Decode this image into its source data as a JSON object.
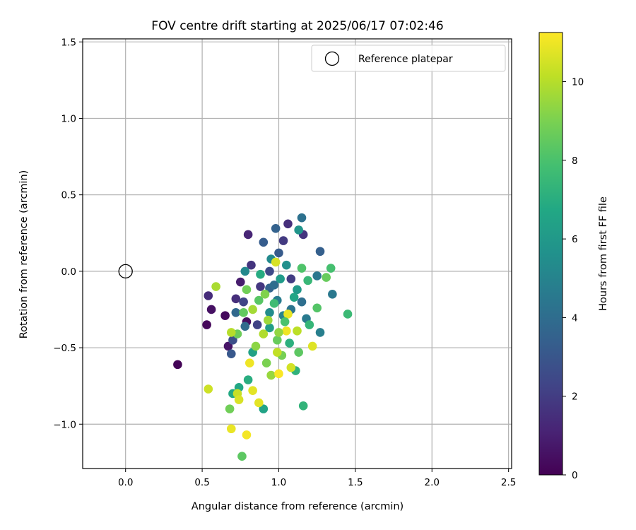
{
  "chart_data": {
    "type": "scatter",
    "title": "FOV centre drift starting at 2025/06/17 07:02:46",
    "xlabel": "Angular distance from reference (arcmin)",
    "ylabel": "Rotation from reference (arcmin)",
    "xlim": [
      -0.28,
      2.52
    ],
    "ylim": [
      -1.29,
      1.52
    ],
    "xticks": [
      0.0,
      0.5,
      1.0,
      1.5,
      2.0,
      2.5
    ],
    "xtick_labels": [
      "0.0",
      "0.5",
      "1.0",
      "1.5",
      "2.0",
      "2.5"
    ],
    "yticks": [
      -1.0,
      -0.5,
      0.0,
      0.5,
      1.0,
      1.5
    ],
    "ytick_labels": [
      "−1.0",
      "−0.5",
      "0.0",
      "0.5",
      "1.0",
      "1.5"
    ],
    "grid": true,
    "colormap": "viridis",
    "colorbar": {
      "label": "Hours from first FF file",
      "min": 0,
      "max": 11.25,
      "ticks": [
        0,
        2,
        4,
        6,
        8,
        10
      ],
      "tick_labels": [
        "0",
        "2",
        "4",
        "6",
        "8",
        "10"
      ]
    },
    "legend": {
      "position": "top-right",
      "entries": [
        {
          "label": "Reference platepar",
          "marker": "open-circle",
          "color": "#000000"
        }
      ]
    },
    "reference_point": {
      "x": 0.0,
      "y": 0.0
    },
    "series": [
      {
        "points": [
          [
            0.34,
            -0.61,
            0.1
          ],
          [
            0.53,
            -0.35,
            0.2
          ],
          [
            0.65,
            -0.29,
            0.3
          ],
          [
            0.56,
            -0.25,
            0.5
          ],
          [
            0.67,
            -0.49,
            0.6
          ],
          [
            0.79,
            -0.33,
            0.4
          ],
          [
            0.8,
            0.24,
            1.2
          ],
          [
            0.54,
            -0.16,
            1.4
          ],
          [
            0.72,
            -0.18,
            1.5
          ],
          [
            0.75,
            -0.07,
            0.9
          ],
          [
            0.82,
            0.04,
            1.7
          ],
          [
            0.88,
            -0.1,
            1.8
          ],
          [
            1.06,
            0.31,
            1.5
          ],
          [
            1.16,
            0.24,
            1.7
          ],
          [
            1.03,
            0.2,
            1.9
          ],
          [
            1.08,
            -0.05,
            2.0
          ],
          [
            0.77,
            -0.2,
            2.3
          ],
          [
            0.94,
            0.0,
            2.5
          ],
          [
            0.86,
            -0.35,
            2.2
          ],
          [
            0.7,
            -0.45,
            2.7
          ],
          [
            0.69,
            -0.54,
            3.1
          ],
          [
            0.9,
            0.19,
            3.3
          ],
          [
            0.98,
            0.28,
            3.5
          ],
          [
            1.0,
            0.12,
            3.2
          ],
          [
            1.27,
            0.13,
            3.4
          ],
          [
            1.15,
            0.35,
            4.2
          ],
          [
            0.72,
            -0.27,
            3.8
          ],
          [
            0.78,
            -0.36,
            3.9
          ],
          [
            0.94,
            -0.11,
            3.6
          ],
          [
            0.97,
            -0.09,
            4.0
          ],
          [
            1.08,
            -0.25,
            4.3
          ],
          [
            1.15,
            -0.2,
            4.1
          ],
          [
            1.25,
            -0.03,
            4.4
          ],
          [
            1.35,
            -0.15,
            4.5
          ],
          [
            1.18,
            -0.31,
            4.6
          ],
          [
            1.27,
            -0.4,
            4.8
          ],
          [
            0.99,
            -0.19,
            4.7
          ],
          [
            1.03,
            -0.29,
            5.0
          ],
          [
            0.78,
            0.0,
            5.2
          ],
          [
            0.95,
            0.08,
            5.3
          ],
          [
            1.05,
            0.04,
            5.6
          ],
          [
            1.13,
            0.27,
            5.8
          ],
          [
            1.12,
            -0.12,
            6.0
          ],
          [
            0.94,
            -0.37,
            6.2
          ],
          [
            0.83,
            -0.53,
            6.4
          ],
          [
            0.9,
            -0.9,
            6.5
          ],
          [
            0.74,
            -0.76,
            6.7
          ],
          [
            0.7,
            -0.8,
            6.8
          ],
          [
            0.8,
            -0.71,
            7.0
          ],
          [
            1.11,
            -0.65,
            7.2
          ],
          [
            1.07,
            -0.47,
            7.1
          ],
          [
            1.2,
            -0.35,
            7.4
          ],
          [
            1.45,
            -0.28,
            7.6
          ],
          [
            1.34,
            0.02,
            7.9
          ],
          [
            1.15,
            0.02,
            8.1
          ],
          [
            0.87,
            -0.19,
            8.3
          ],
          [
            0.77,
            -0.27,
            8.5
          ],
          [
            0.73,
            -0.41,
            8.7
          ],
          [
            0.99,
            -0.45,
            8.6
          ],
          [
            1.02,
            -0.55,
            8.9
          ],
          [
            0.68,
            -0.9,
            8.8
          ],
          [
            0.76,
            -1.21,
            8.4
          ],
          [
            1.16,
            -0.88,
            7.3
          ],
          [
            1.25,
            -0.24,
            8.2
          ],
          [
            1.31,
            -0.04,
            8.6
          ],
          [
            0.92,
            -0.6,
            9.0
          ],
          [
            0.85,
            -0.49,
            9.3
          ],
          [
            0.95,
            -0.68,
            9.5
          ],
          [
            0.59,
            -0.1,
            9.8
          ],
          [
            0.69,
            -0.4,
            10.0
          ],
          [
            0.73,
            -0.8,
            10.3
          ],
          [
            0.83,
            -0.25,
            9.7
          ],
          [
            0.9,
            -0.41,
            9.9
          ],
          [
            0.99,
            -0.53,
            10.2
          ],
          [
            1.08,
            -0.63,
            10.5
          ],
          [
            1.12,
            -0.39,
            10.1
          ],
          [
            0.54,
            -0.77,
            10.4
          ],
          [
            0.74,
            -0.84,
            10.6
          ],
          [
            0.69,
            -1.03,
            10.9
          ],
          [
            0.79,
            -1.07,
            11.1
          ],
          [
            0.81,
            -0.6,
            11.0
          ],
          [
            0.87,
            -0.86,
            10.8
          ],
          [
            1.0,
            -0.67,
            11.2
          ],
          [
            1.05,
            -0.39,
            11.0
          ],
          [
            1.22,
            -0.49,
            10.7
          ],
          [
            0.98,
            0.06,
            10.6
          ],
          [
            1.06,
            -0.28,
            10.9
          ],
          [
            0.83,
            -0.78,
            10.8
          ],
          [
            0.94,
            -0.27,
            5.4
          ],
          [
            1.01,
            -0.05,
            6.1
          ],
          [
            1.1,
            -0.17,
            6.6
          ],
          [
            1.19,
            -0.06,
            7.5
          ],
          [
            0.88,
            -0.02,
            6.9
          ],
          [
            0.97,
            -0.21,
            7.7
          ],
          [
            1.04,
            -0.33,
            8.0
          ],
          [
            1.13,
            -0.53,
            8.4
          ],
          [
            0.79,
            -0.12,
            8.8
          ],
          [
            0.91,
            -0.15,
            9.1
          ],
          [
            1.0,
            -0.4,
            9.4
          ],
          [
            0.93,
            -0.32,
            9.6
          ]
        ]
      }
    ]
  }
}
